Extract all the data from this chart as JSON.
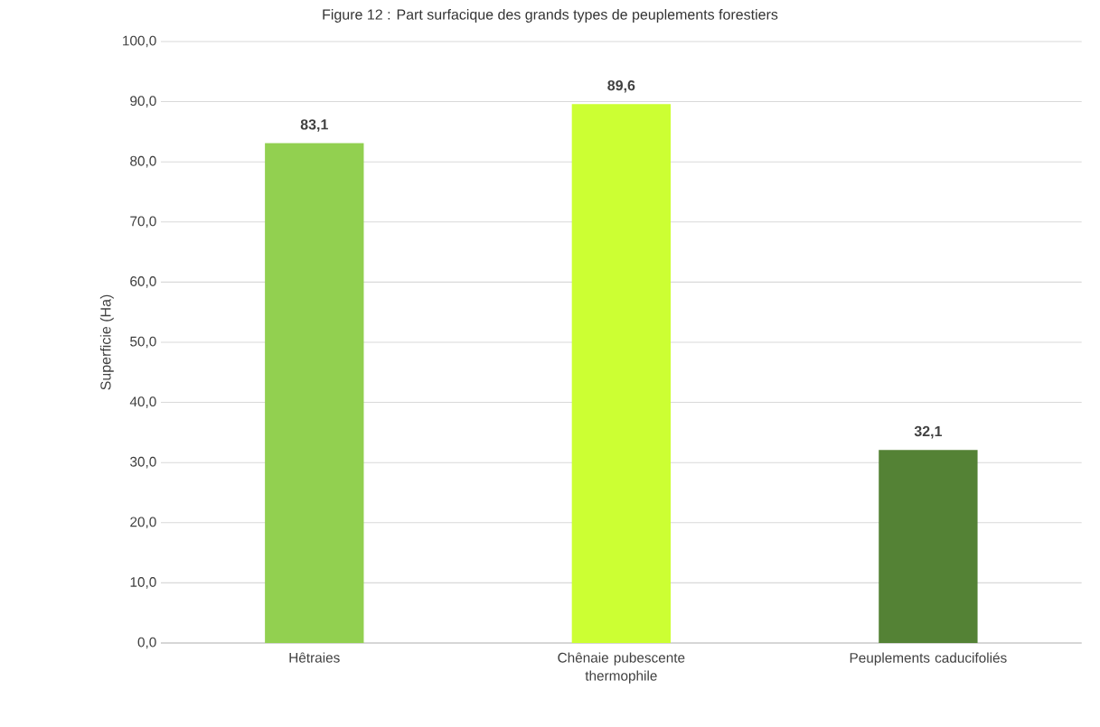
{
  "chart_data": {
    "type": "bar",
    "title": "Figure 12 : Part surfacique des grands types de peuplements forestiers",
    "ylabel": "Superficie (Ha)",
    "categories": [
      "Hêtraies",
      "Chênaie pubescente thermophile",
      "Peuplements caducifoliés"
    ],
    "values": [
      83.1,
      89.6,
      32.1
    ],
    "colors": [
      "#92d050",
      "#ccff33",
      "#548235"
    ],
    "value_labels": [
      "83,1",
      "89,6",
      "32,1"
    ],
    "ylim": [
      0,
      100
    ],
    "yticks": [
      {
        "value": 0,
        "label": "0,0"
      },
      {
        "value": 10,
        "label": "10,0"
      },
      {
        "value": 20,
        "label": "20,0"
      },
      {
        "value": 30,
        "label": "30,0"
      },
      {
        "value": 40,
        "label": "40,0"
      },
      {
        "value": 50,
        "label": "50,0"
      },
      {
        "value": 60,
        "label": "60,0"
      },
      {
        "value": 70,
        "label": "70,0"
      },
      {
        "value": 80,
        "label": "80,0"
      },
      {
        "value": 90,
        "label": "90,0"
      },
      {
        "value": 100,
        "label": "100,0"
      }
    ],
    "grid": "y"
  }
}
